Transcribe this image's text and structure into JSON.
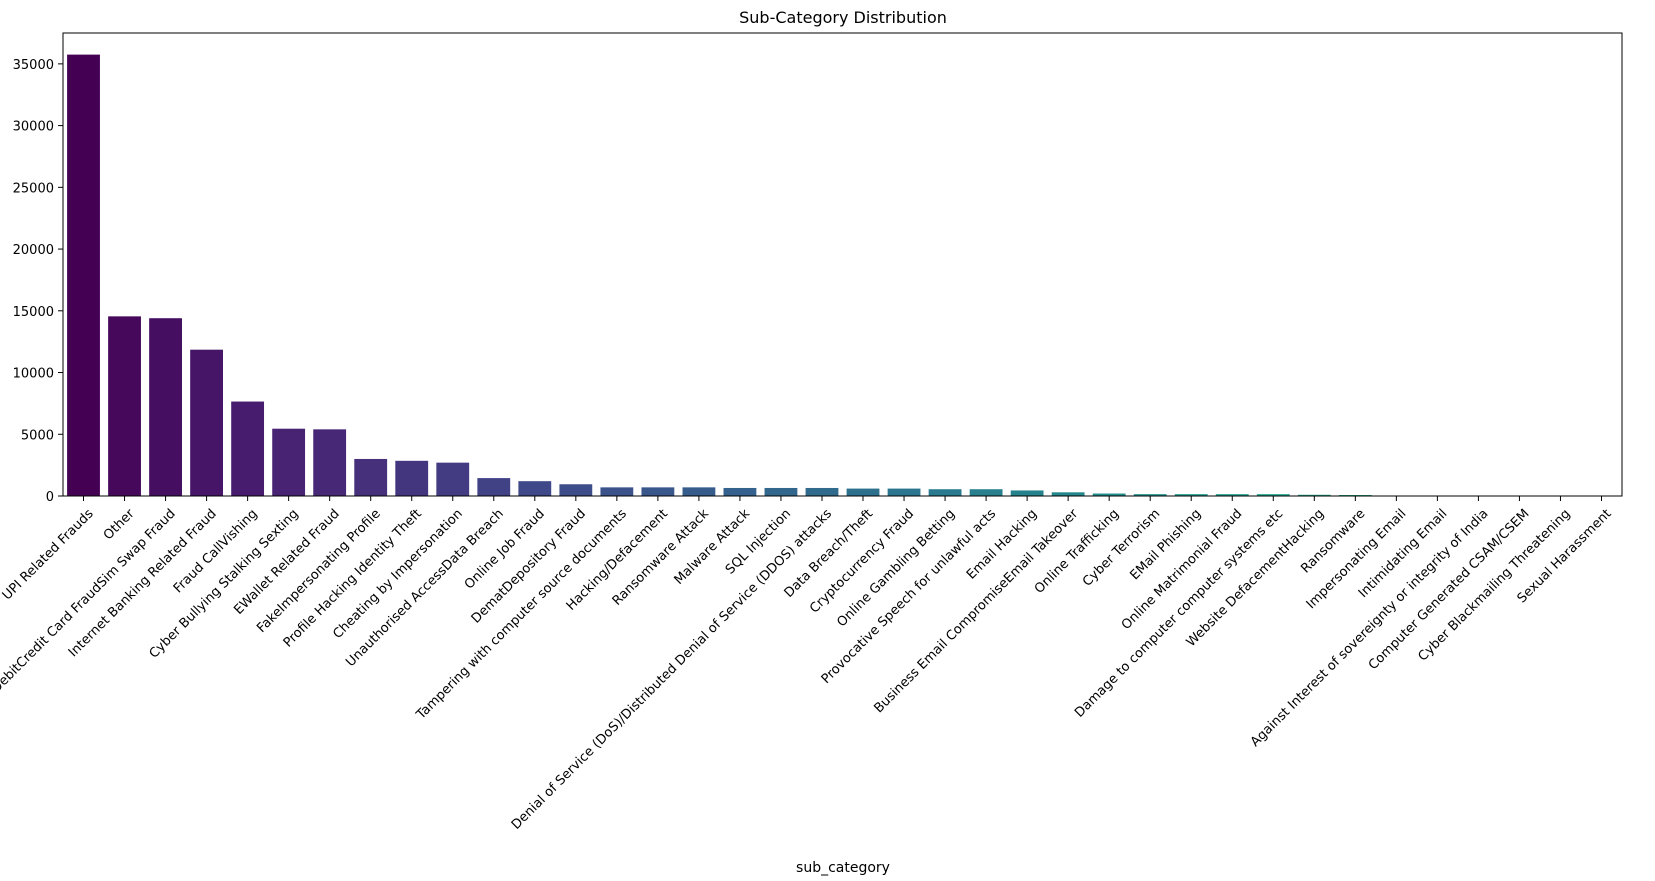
{
  "chart_data": {
    "type": "bar",
    "title": "Sub-Category Distribution",
    "xlabel": "sub_category",
    "ylabel": "",
    "ylim": [
      0,
      37500
    ],
    "yticks": [
      0,
      5000,
      10000,
      15000,
      20000,
      25000,
      30000,
      35000
    ],
    "grid": false,
    "legend": "none",
    "palette": "viridis",
    "categories": [
      "UPI Related Frauds",
      "Other",
      "DebitCredit Card FraudSim Swap Fraud",
      "Internet Banking Related Fraud",
      "Fraud CallVishing",
      "Cyber Bullying  Stalking  Sexting",
      "EWallet Related Fraud",
      "FakeImpersonating Profile",
      "Profile Hacking Identity Theft",
      "Cheating by Impersonation",
      "Unauthorised AccessData Breach",
      "Online Job Fraud",
      "DematDepository Fraud",
      "Tampering with computer source documents",
      "Hacking/Defacement",
      "Ransomware Attack",
      "Malware Attack",
      "SQL Injection",
      "Denial of Service (DoS)/Distributed Denial of Service (DDOS) attacks",
      "Data Breach/Theft",
      "Cryptocurrency Fraud",
      "Online Gambling  Betting",
      "Provocative Speech for unlawful acts",
      "Email Hacking",
      "Business Email CompromiseEmail Takeover",
      "Online Trafficking",
      "Cyber Terrorism",
      "EMail Phishing",
      "Online Matrimonial Fraud",
      "Damage to computer computer systems etc",
      "Website DefacementHacking",
      "Ransomware",
      "Impersonating Email",
      "Intimidating Email",
      "Against Interest of sovereignty or integrity of India",
      "Computer Generated CSAM/CSEM",
      "Cyber Blackmailing  Threatening",
      "Sexual Harassment"
    ],
    "values": [
      35750,
      14550,
      14400,
      11850,
      7650,
      5450,
      5400,
      3000,
      2850,
      2700,
      1450,
      1200,
      950,
      700,
      700,
      700,
      650,
      650,
      650,
      600,
      600,
      550,
      550,
      450,
      300,
      200,
      150,
      150,
      150,
      150,
      100,
      80,
      30,
      15,
      10,
      8,
      5,
      5
    ]
  }
}
